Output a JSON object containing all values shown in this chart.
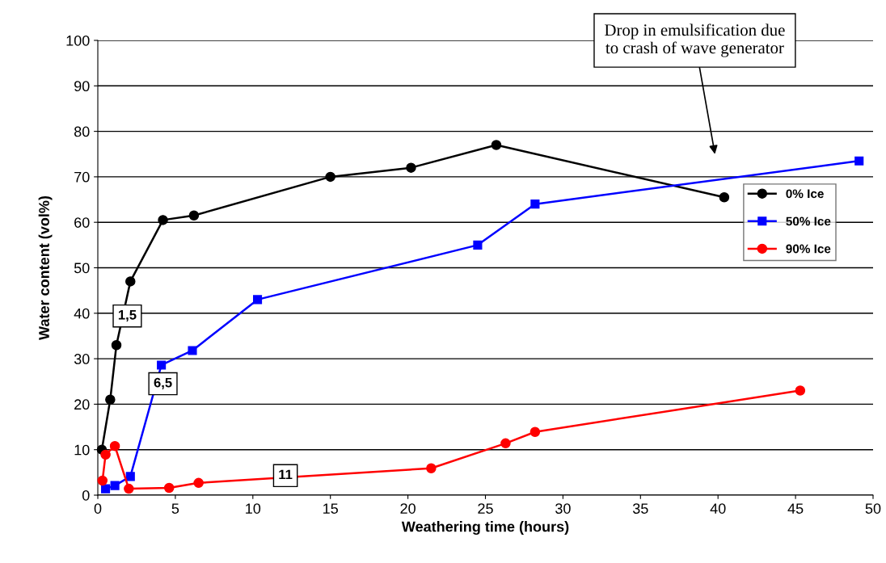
{
  "chart_data": {
    "type": "line",
    "xlabel": "Weathering time (hours)",
    "ylabel": "Water content (vol%)",
    "xlim": [
      0,
      50
    ],
    "xticks": [
      0,
      5,
      10,
      15,
      20,
      25,
      30,
      35,
      40,
      45,
      50
    ],
    "ylim": [
      0,
      100
    ],
    "yticks": [
      0,
      10,
      20,
      30,
      40,
      50,
      60,
      70,
      80,
      90,
      100
    ],
    "grid": "y",
    "legend": "right",
    "line_style": "solid",
    "series": [
      {
        "name": "0% Ice",
        "color": "#000000",
        "marker": "circle",
        "x": [
          0.26,
          0.8,
          1.2,
          2.1,
          4.2,
          6.2,
          15.0,
          20.2,
          25.7,
          40.4
        ],
        "values": [
          10,
          21,
          33,
          47,
          60.5,
          61.5,
          70,
          72,
          77,
          65.5
        ]
      },
      {
        "name": "50% Ice",
        "color": "#0000ff",
        "marker": "square",
        "x": [
          0.5,
          1.1,
          2.1,
          4.1,
          6.1,
          10.3,
          24.5,
          28.2,
          49.1
        ],
        "values": [
          1.4,
          2.1,
          4.1,
          28.6,
          31.8,
          43,
          55,
          64,
          73.5
        ]
      },
      {
        "name": "90% Ice",
        "color": "#ff0000",
        "marker": "circle",
        "x": [
          0.3,
          0.5,
          1.1,
          2.0,
          4.6,
          6.5,
          21.5,
          26.3,
          28.2,
          45.3
        ],
        "values": [
          3.2,
          8.9,
          10.8,
          1.4,
          1.6,
          2.7,
          5.9,
          11.4,
          13.9,
          23
        ]
      }
    ],
    "annotations": [
      {
        "text": "1,5",
        "x": 1.9,
        "y": 39.4
      },
      {
        "text": "6,5",
        "x": 4.2,
        "y": 24.5
      },
      {
        "text": "11",
        "x": 12.1,
        "y": 4.3
      },
      "Drop in emulsification due\nto crash of wave generator"
    ]
  }
}
